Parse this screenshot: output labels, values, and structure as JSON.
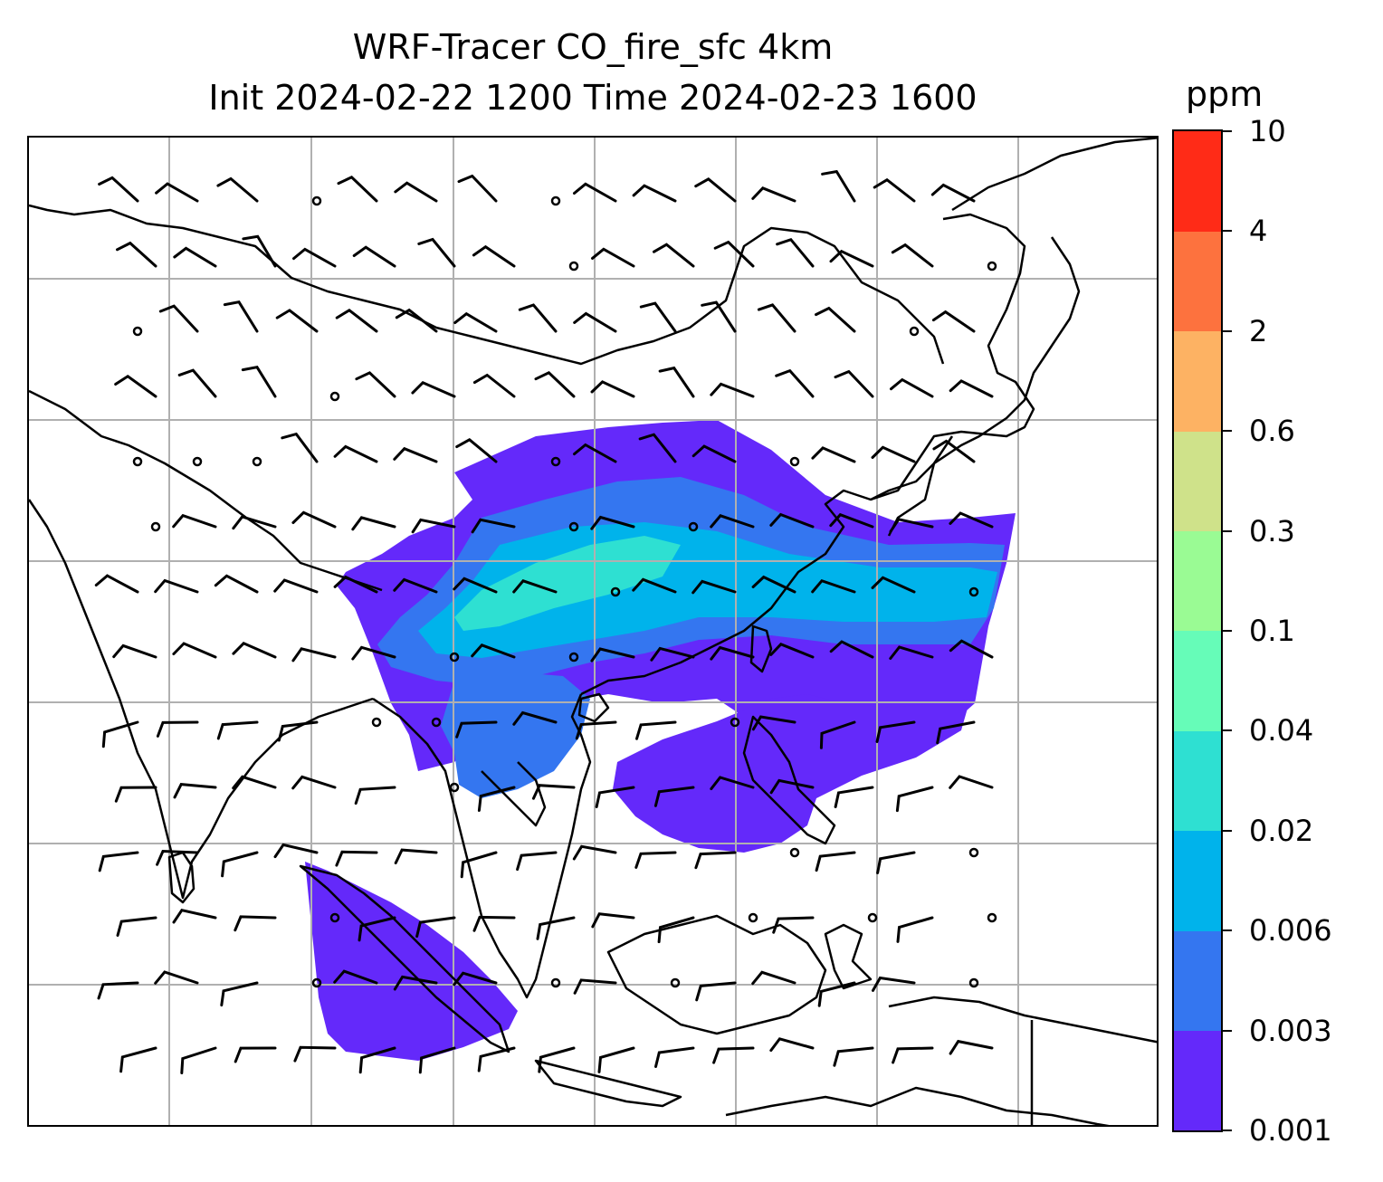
{
  "title_line1": "WRF-Tracer CO_fire_sfc 4km",
  "title_line2": "Init 2024-02-22 1200 Time 2024-02-23 1600",
  "colorbar": {
    "units": "ppm",
    "levels": [
      "0.001",
      "0.003",
      "0.006",
      "0.02",
      "0.04",
      "0.1",
      "0.3",
      "0.6",
      "2",
      "4",
      "10"
    ],
    "colors": [
      "#6429fa",
      "#3476f0",
      "#00b3eb",
      "#2ee0d2",
      "#66fcb8",
      "#9afb94",
      "#cfe28a",
      "#fdb263",
      "#fd723e",
      "#ff2b17"
    ]
  },
  "map": {
    "gridlines": "on",
    "coastline_color": "#000000",
    "wind_barbs": "on"
  }
}
